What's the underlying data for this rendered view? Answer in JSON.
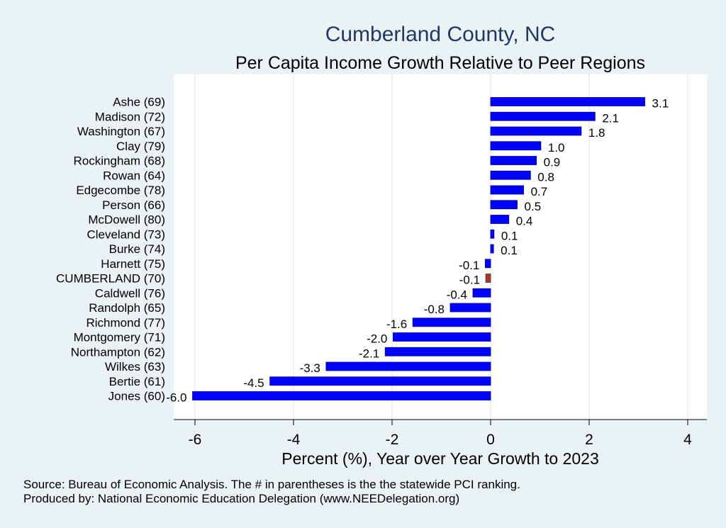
{
  "title": "Cumberland County, NC",
  "subtitle": "Per Capita Income Growth Relative to Peer Regions",
  "notes": [
    "Source: Bureau of Economic Analysis. The # in parentheses is the the statewide PCI ranking.",
    "Produced by: National Economic Education Delegation (www.NEEDelegation.org)"
  ],
  "colors": {
    "background": "#eaf2f3",
    "plot_background": "#ffffff",
    "bar": "#0000ff",
    "highlight_bar": "#a0363a",
    "title": "#1f3864"
  },
  "chart_data": {
    "type": "bar",
    "orientation": "horizontal",
    "title": "Cumberland County, NC",
    "subtitle": "Per Capita Income Growth Relative to Peer Regions",
    "xlabel": "Percent (%), Year over Year Growth to 2023",
    "ylabel": "",
    "xlim": [
      -6.4,
      4.4
    ],
    "xticks": [
      -6,
      -4,
      -2,
      0,
      2,
      4
    ],
    "xtick_labels": [
      "-6",
      "-4",
      "-2",
      "0",
      "2",
      "4"
    ],
    "grid": "vertical",
    "legend": "none",
    "categories": [
      "Ashe (69)",
      "Madison (72)",
      "Washington (67)",
      "Clay (79)",
      "Rockingham (68)",
      "Rowan (64)",
      "Edgecombe (78)",
      "Person (66)",
      "McDowell (80)",
      "Cleveland (73)",
      "Burke (74)",
      "Harnett (75)",
      "CUMBERLAND (70)",
      "Caldwell (76)",
      "Randolph (65)",
      "Richmond (77)",
      "Montgomery (71)",
      "Northampton (62)",
      "Wilkes (63)",
      "Bertie (61)",
      "Jones (60)"
    ],
    "values": [
      3.13,
      2.12,
      1.84,
      1.02,
      0.93,
      0.81,
      0.67,
      0.54,
      0.37,
      0.07,
      0.06,
      -0.11,
      -0.1,
      -0.36,
      -0.82,
      -1.58,
      -1.98,
      -2.14,
      -3.34,
      -4.48,
      -6.05
    ],
    "value_labels": [
      "3.1",
      "2.1",
      "1.8",
      "1.0",
      "0.9",
      "0.8",
      "0.7",
      "0.5",
      "0.4",
      "0.1",
      "0.1",
      "-0.1",
      "-0.1",
      "-0.4",
      "-0.8",
      "-1.6",
      "-2.0",
      "-2.1",
      "-3.3",
      "-4.5",
      "-6.0"
    ],
    "highlight_category": "CUMBERLAND (70)"
  }
}
